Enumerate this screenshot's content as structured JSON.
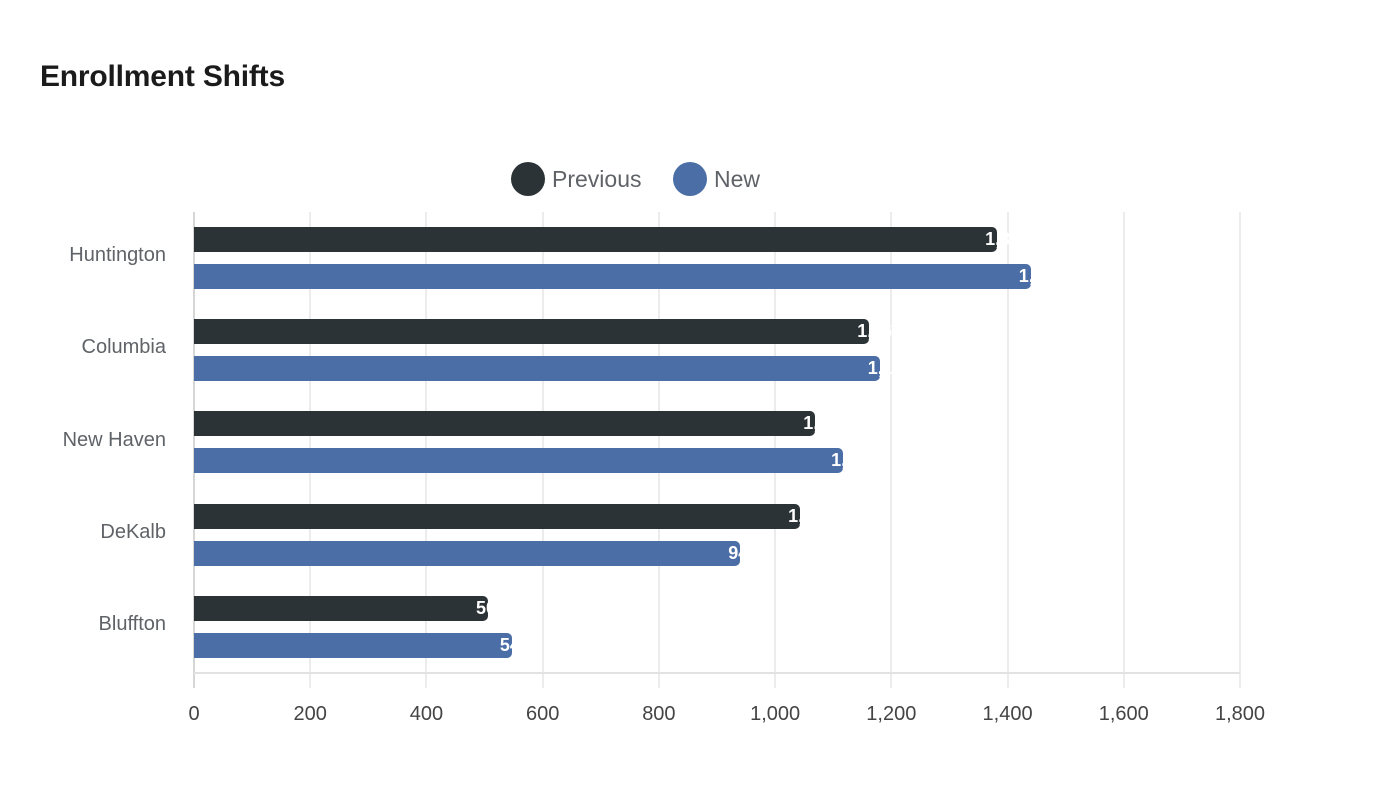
{
  "title": "Enrollment Shifts",
  "legend": [
    {
      "label": "Previous",
      "color": "#2c3336"
    },
    {
      "label": "New",
      "color": "#4a6ea5"
    }
  ],
  "colors": {
    "previous": "#2c3336",
    "new": "#4a6ea5",
    "grid": "#ececec",
    "text": "#5f6368"
  },
  "x_ticks": [
    "0",
    "200",
    "400",
    "600",
    "800",
    "1,000",
    "1,200",
    "1,400",
    "1,600",
    "1,800"
  ],
  "chart_data": {
    "type": "bar",
    "orientation": "horizontal",
    "title": "Enrollment Shifts",
    "xlabel": "",
    "ylabel": "",
    "categories": [
      "Huntington",
      "Columbia",
      "New Haven",
      "DeKalb",
      "Bluffton"
    ],
    "series": [
      {
        "name": "Previous",
        "color": "#2c3336",
        "values": [
          1382,
          1162,
          1069,
          1043,
          506
        ]
      },
      {
        "name": "New",
        "color": "#4a6ea5",
        "values": [
          1440,
          1180,
          1117,
          940,
          547
        ]
      }
    ],
    "xlim": [
      0,
      1800
    ],
    "x_ticks": [
      0,
      200,
      400,
      600,
      800,
      1000,
      1200,
      1400,
      1600,
      1800
    ],
    "grid": true,
    "legend_position": "top"
  }
}
